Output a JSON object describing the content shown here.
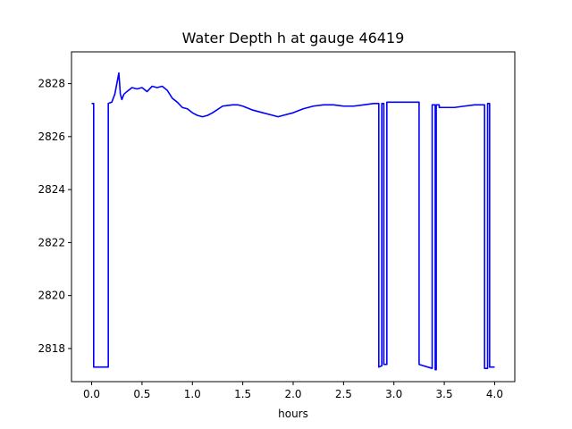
{
  "chart_data": {
    "type": "line",
    "title": "Water Depth h at gauge 46419",
    "xlabel": "hours",
    "ylabel": "",
    "xlim": [
      -0.2,
      4.2
    ],
    "ylim": [
      2816.75,
      2829.2
    ],
    "xticks": [
      0.0,
      0.5,
      1.0,
      1.5,
      2.0,
      2.5,
      3.0,
      3.5,
      4.0
    ],
    "xtick_labels": [
      "0.0",
      "0.5",
      "1.0",
      "1.5",
      "2.0",
      "2.5",
      "3.0",
      "3.5",
      "4.0"
    ],
    "yticks": [
      2818,
      2820,
      2822,
      2824,
      2826,
      2828
    ],
    "ytick_labels": [
      "2818",
      "2820",
      "2822",
      "2824",
      "2826",
      "2828"
    ],
    "grid": false,
    "series": [
      {
        "color": "#0000ff",
        "x": [
          0.0,
          0.02,
          0.02,
          0.05,
          0.1,
          0.165,
          0.165,
          0.2,
          0.23,
          0.25,
          0.27,
          0.285,
          0.3,
          0.32,
          0.35,
          0.4,
          0.45,
          0.5,
          0.55,
          0.6,
          0.65,
          0.7,
          0.75,
          0.8,
          0.85,
          0.9,
          0.95,
          1.0,
          1.05,
          1.1,
          1.15,
          1.2,
          1.3,
          1.4,
          1.45,
          1.5,
          1.6,
          1.7,
          1.8,
          1.85,
          1.9,
          2.0,
          2.1,
          2.2,
          2.3,
          2.4,
          2.5,
          2.6,
          2.7,
          2.8,
          2.85,
          2.85,
          2.88,
          2.88,
          2.9,
          2.9,
          2.92,
          2.93,
          2.93,
          2.97,
          2.99,
          2.99,
          3.1,
          3.2,
          3.25,
          3.25,
          3.38,
          3.38,
          3.41,
          3.41,
          3.42,
          3.42,
          3.45,
          3.45,
          3.5,
          3.6,
          3.7,
          3.8,
          3.9,
          3.9,
          3.93,
          3.93,
          3.95,
          3.95,
          4.0
        ],
        "y": [
          2827.25,
          2827.25,
          2817.3,
          2817.3,
          2817.3,
          2817.3,
          2827.25,
          2827.3,
          2827.6,
          2828.0,
          2828.4,
          2827.6,
          2827.4,
          2827.6,
          2827.7,
          2827.85,
          2827.8,
          2827.85,
          2827.7,
          2827.9,
          2827.85,
          2827.9,
          2827.75,
          2827.45,
          2827.3,
          2827.1,
          2827.05,
          2826.9,
          2826.8,
          2826.75,
          2826.8,
          2826.9,
          2827.15,
          2827.2,
          2827.2,
          2827.15,
          2827.0,
          2826.9,
          2826.8,
          2826.75,
          2826.8,
          2826.9,
          2827.05,
          2827.15,
          2827.2,
          2827.2,
          2827.15,
          2827.15,
          2827.2,
          2827.25,
          2827.25,
          2817.3,
          2817.35,
          2827.25,
          2827.25,
          2817.4,
          2817.4,
          2817.4,
          2827.3,
          2827.3,
          2827.3,
          2827.3,
          2827.3,
          2827.3,
          2827.3,
          2817.4,
          2817.25,
          2827.2,
          2827.2,
          2817.2,
          2817.2,
          2827.2,
          2827.2,
          2827.1,
          2827.1,
          2827.1,
          2827.15,
          2827.2,
          2827.2,
          2817.25,
          2817.25,
          2827.25,
          2827.25,
          2817.3,
          2817.3
        ]
      }
    ]
  }
}
